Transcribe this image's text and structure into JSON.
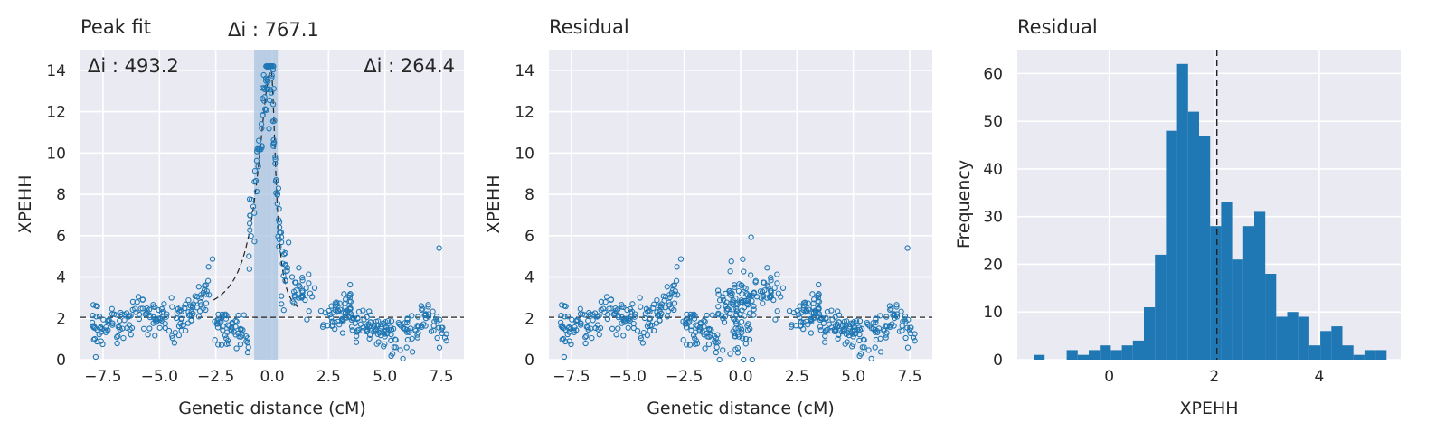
{
  "figure": {
    "background": "#ffffff",
    "axes_facecolor": "#eaeaf2",
    "grid_color": "#ffffff"
  },
  "chart_data": [
    {
      "type": "scatter",
      "title": "Peak fit",
      "xlabel": "Genetic distance (cM)",
      "ylabel": "XPEHH",
      "xlim": [
        -8.5,
        8.5
      ],
      "ylim": [
        0,
        15
      ],
      "xticks": [
        -7.5,
        -5.0,
        -2.5,
        0.0,
        2.5,
        5.0,
        7.5
      ],
      "xtick_labels": [
        "−7.5",
        "−5.0",
        "−2.5",
        "0.0",
        "2.5",
        "5.0",
        "7.5"
      ],
      "yticks": [
        0,
        2,
        4,
        6,
        8,
        10,
        12,
        14
      ],
      "ytick_labels": [
        "0",
        "2",
        "4",
        "6",
        "8",
        "10",
        "12",
        "14"
      ],
      "grid": true,
      "marker_color": "#1f77b4",
      "baseline": 2.05,
      "fit_curve": {
        "center": -0.05,
        "peak": 14.0,
        "left_width": 0.7,
        "right_width": 0.25
      },
      "highlight_span": {
        "x0": -0.8,
        "x1": 0.25,
        "color": "#a8c4e0"
      },
      "annotations": [
        {
          "text": "Δi : 493.2",
          "position": "top-left"
        },
        {
          "text": "Δi : 767.1",
          "position": "above-center"
        },
        {
          "text": "Δi : 264.4",
          "position": "top-right"
        }
      ],
      "points_approx": {
        "x_range": [
          -8.0,
          7.8
        ],
        "n": 520,
        "max_y": 14.2,
        "outlier": [
          7.4,
          5.4
        ]
      }
    },
    {
      "type": "scatter",
      "title": "Residual",
      "xlabel": "Genetic distance (cM)",
      "ylabel": "XPEHH",
      "xlim": [
        -8.5,
        8.5
      ],
      "ylim": [
        0,
        15
      ],
      "xticks": [
        -7.5,
        -5.0,
        -2.5,
        0.0,
        2.5,
        5.0,
        7.5
      ],
      "xtick_labels": [
        "−7.5",
        "−5.0",
        "−2.5",
        "0.0",
        "2.5",
        "5.0",
        "7.5"
      ],
      "yticks": [
        0,
        2,
        4,
        6,
        8,
        10,
        12,
        14
      ],
      "ytick_labels": [
        "0",
        "2",
        "4",
        "6",
        "8",
        "10",
        "12",
        "14"
      ],
      "grid": true,
      "marker_color": "#1f77b4",
      "baseline": 2.05
    },
    {
      "type": "bar",
      "title": "Residual",
      "xlabel": "XPEHH",
      "ylabel": "Frequency",
      "xlim": [
        -1.75,
        5.55
      ],
      "ylim": [
        0,
        65
      ],
      "xticks": [
        0,
        2,
        4
      ],
      "xtick_labels": [
        "0",
        "2",
        "4"
      ],
      "yticks": [
        0,
        10,
        20,
        30,
        40,
        50,
        60
      ],
      "ytick_labels": [
        "0",
        "10",
        "20",
        "30",
        "40",
        "50",
        "60"
      ],
      "grid": true,
      "bar_color": "#1f77b4",
      "median_line": 2.05,
      "bin_edges": [
        -1.44,
        -1.23,
        -1.02,
        -0.81,
        -0.6,
        -0.39,
        -0.18,
        0.03,
        0.24,
        0.45,
        0.66,
        0.87,
        1.08,
        1.29,
        1.5,
        1.71,
        1.92,
        2.13,
        2.34,
        2.55,
        2.76,
        2.97,
        3.18,
        3.39,
        3.6,
        3.81,
        4.02,
        4.23,
        4.44,
        4.65,
        4.86,
        5.07,
        5.28
      ],
      "counts": [
        1,
        0,
        0,
        2,
        1,
        2,
        3,
        2,
        3,
        4,
        11,
        22,
        48,
        62,
        52,
        47,
        28,
        33,
        21,
        28,
        31,
        18,
        9,
        10,
        9,
        3,
        6,
        7,
        3,
        1,
        2,
        2
      ]
    }
  ]
}
